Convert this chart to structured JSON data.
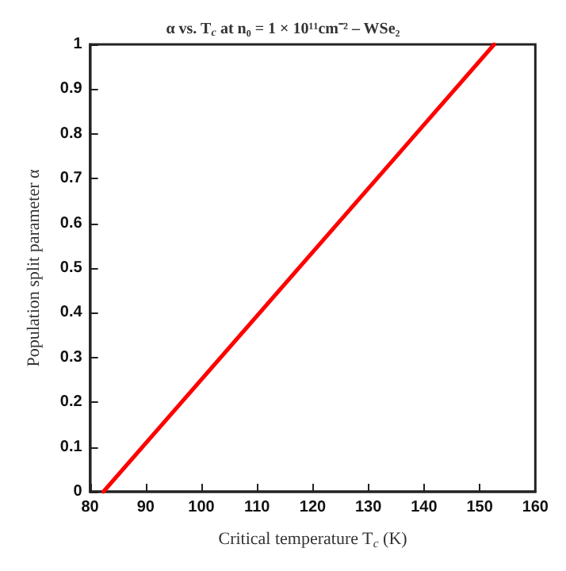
{
  "chart_data": {
    "type": "line",
    "title": "α vs. T$_{c}$ at n₀ = 1 × 10¹¹cm⁻² – WSe₂",
    "xlabel": "Critical temperature T$_{c}$ (K)",
    "ylabel": "Population split parameter α",
    "x": [
      82.4,
      152.6
    ],
    "series": [
      {
        "color": "#ff0000",
        "values": [
          0,
          1
        ]
      }
    ],
    "xlim": [
      80,
      160
    ],
    "xticks": [
      80,
      90,
      100,
      110,
      120,
      130,
      140,
      150,
      160
    ],
    "ylim": [
      0,
      1
    ],
    "yticks": [
      0,
      0.1,
      0.2,
      0.3,
      0.4,
      0.5,
      0.6,
      0.7,
      0.8,
      0.9,
      1
    ],
    "grid": false,
    "marker": "none",
    "line_style": "solid"
  }
}
